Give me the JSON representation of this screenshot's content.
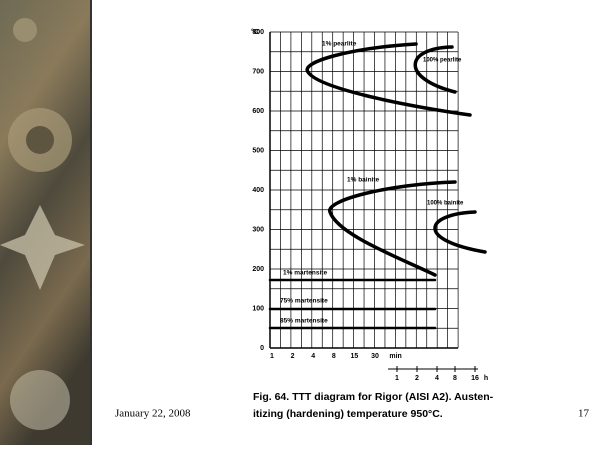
{
  "slide": {
    "date": "January 22, 2008",
    "page": "17"
  },
  "figure": {
    "y_unit": "°C",
    "yticks": [
      800,
      700,
      600,
      500,
      400,
      300,
      200,
      100,
      0
    ],
    "xticks_min": [
      "1",
      "2",
      "4",
      "8",
      "15",
      "30",
      "min"
    ],
    "xticks_h": [
      "1",
      "2",
      "4",
      "8",
      "16",
      "h"
    ],
    "curve_labels": [
      "1% pearlite",
      "100% pearlite",
      "1% bainite",
      "100% bainite",
      "1% martensite",
      "75% martensite",
      "85% martensite"
    ],
    "caption": [
      "Fig. 64. TTT diagram for Rigor (AISI A2). Austen-",
      "itizing (hardening) temperature 950°C."
    ]
  }
}
